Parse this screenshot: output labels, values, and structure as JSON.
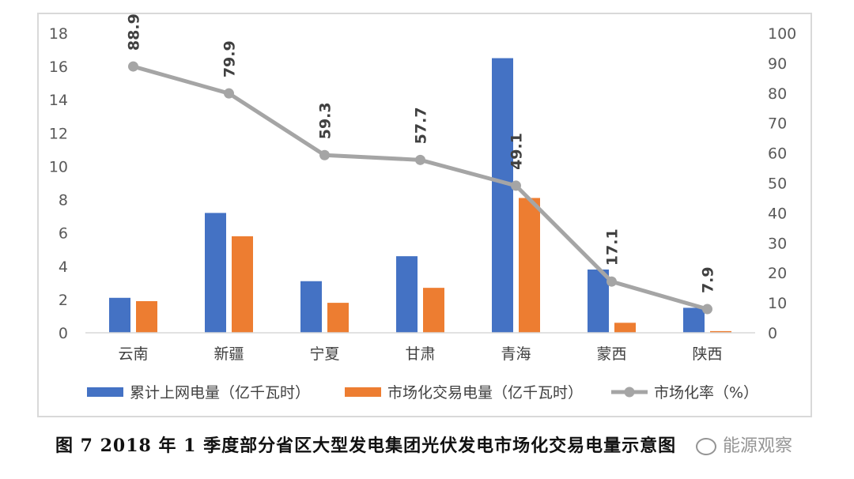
{
  "chart_data": {
    "type": "bar",
    "categories": [
      "云南",
      "新疆",
      "宁夏",
      "甘肃",
      "青海",
      "蒙西",
      "陕西"
    ],
    "series": [
      {
        "name": "累计上网电量（亿千瓦时）",
        "type": "bar",
        "axis": "left",
        "color": "#4472c4",
        "values": [
          2.1,
          7.2,
          3.1,
          4.6,
          16.5,
          3.8,
          1.5
        ]
      },
      {
        "name": "市场化交易电量（亿千瓦时）",
        "type": "bar",
        "axis": "left",
        "color": "#ed7d31",
        "values": [
          1.9,
          5.8,
          1.8,
          2.7,
          8.1,
          0.6,
          0.1
        ]
      },
      {
        "name": "市场化率（%）",
        "type": "line",
        "axis": "right",
        "color": "#a5a5a5",
        "values": [
          88.9,
          79.9,
          59.3,
          57.7,
          49.1,
          17.1,
          7.9
        ],
        "labels": [
          "88.9",
          "79.9",
          "59.3",
          "57.7",
          "49.1",
          "17.1",
          "7.9"
        ]
      }
    ],
    "y_left": {
      "ylim": [
        0,
        18
      ],
      "ticks": [
        "0",
        "2",
        "4",
        "6",
        "8",
        "10",
        "12",
        "14",
        "16",
        "18"
      ]
    },
    "y_right": {
      "ylim": [
        0,
        100
      ],
      "ticks": [
        "0",
        "10",
        "20",
        "30",
        "40",
        "50",
        "60",
        "70",
        "80",
        "90",
        "100"
      ]
    },
    "grid": false,
    "legend": "bottom"
  },
  "caption": "图 7   2018 年 1 季度部分省区大型发电集团光伏发电市场化交易电量示意图",
  "watermark": "能源观察"
}
